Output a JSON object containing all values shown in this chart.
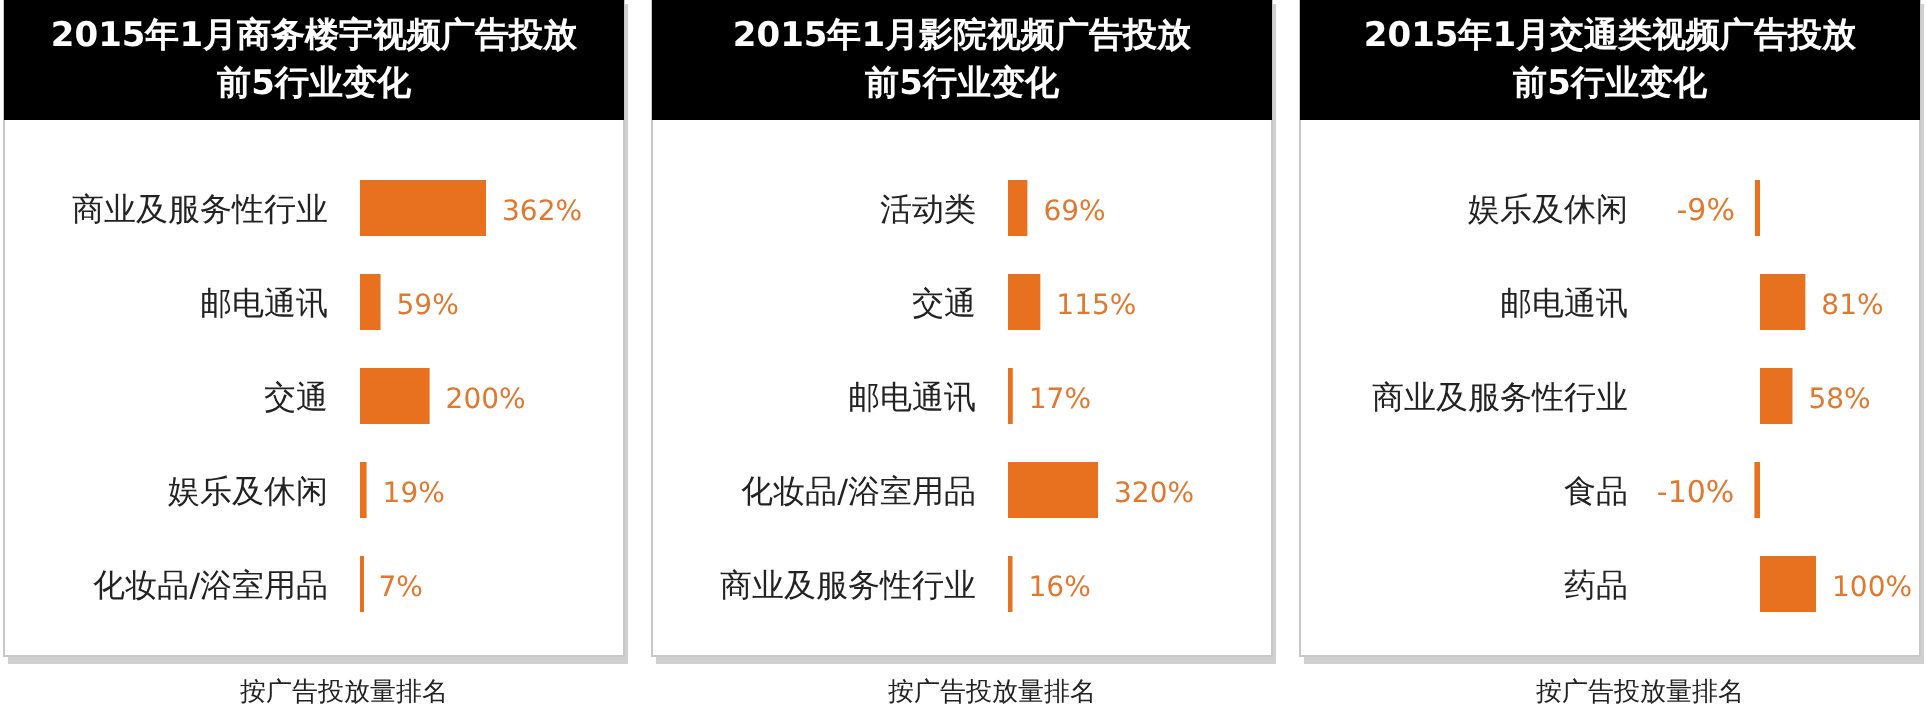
{
  "chart_data": [
    {
      "type": "bar",
      "orientation": "horizontal",
      "title": "2015年1月商务楼宇视频广告投放前5行业变化",
      "categories": [
        "商业及服务性行业",
        "邮电通讯",
        "交通",
        "娱乐及休闲",
        "化妆品/浴室用品"
      ],
      "values": [
        362,
        59,
        200,
        19,
        7
      ],
      "value_labels": [
        "362%",
        "59%",
        "200%",
        "19%",
        "7%"
      ],
      "color": "#e8711f",
      "annotations": [
        "按广告投放量排名"
      ]
    },
    {
      "type": "bar",
      "orientation": "horizontal",
      "title": "2015年1月影院视频广告投放前5行业变化",
      "categories": [
        "活动类",
        "交通",
        "邮电通讯",
        "化妆品/浴室用品",
        "商业及服务性行业"
      ],
      "values": [
        69,
        115,
        17,
        320,
        16
      ],
      "value_labels": [
        "69%",
        "115%",
        "17%",
        "320%",
        "16%"
      ],
      "color": "#e8711f",
      "annotations": [
        "按广告投放量排名"
      ]
    },
    {
      "type": "bar",
      "orientation": "horizontal",
      "title": "2015年1月交通类视频广告投放前5行业变化",
      "categories": [
        "娱乐及休闲",
        "邮电通讯",
        "商业及服务性行业",
        "食品",
        "药品"
      ],
      "values": [
        -9,
        81,
        58,
        -10,
        100
      ],
      "value_labels": [
        "-9%",
        "81%",
        "58%",
        "-10%",
        "100%"
      ],
      "color": "#e8711f",
      "annotations": [
        "按广告投放量排名"
      ]
    }
  ]
}
